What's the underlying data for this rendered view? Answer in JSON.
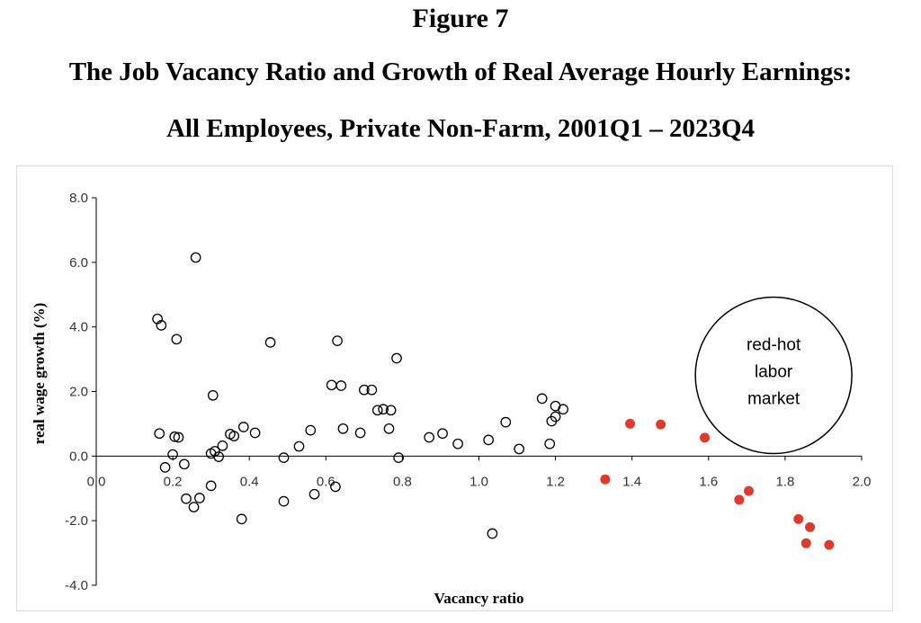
{
  "figure_label": "Figure 7",
  "title_line1": "The Job Vacancy Ratio and Growth of Real Average Hourly Earnings:",
  "title_line2": "All Employees, Private Non-Farm, 2001Q1 – 2023Q4",
  "colors": {
    "hollow_stroke": "#000000",
    "red_fill": "#e03a2f",
    "axis": "#000000"
  },
  "chart_data": {
    "type": "scatter",
    "xlabel": "Vacancy ratio",
    "ylabel": "real wage growth (%)",
    "xlim": [
      0.0,
      2.0
    ],
    "ylim": [
      -4.0,
      8.0
    ],
    "x_ticks": [
      "0.0",
      "0.2",
      "0.4",
      "0.6",
      "0.8",
      "1.0",
      "1.2",
      "1.4",
      "1.6",
      "1.8",
      "2.0"
    ],
    "y_ticks": [
      "8.0",
      "6.0",
      "4.0",
      "2.0",
      "0.0",
      "-2.0",
      "-4.0"
    ],
    "annotation": {
      "lines": [
        "red-hot",
        "labor",
        "market"
      ],
      "x": 1.77,
      "y": 2.5
    },
    "series": [
      {
        "style": "hollow",
        "points": [
          [
            0.16,
            4.25
          ],
          [
            0.17,
            4.05
          ],
          [
            0.21,
            3.62
          ],
          [
            0.26,
            6.15
          ],
          [
            0.165,
            0.7
          ],
          [
            0.18,
            -0.35
          ],
          [
            0.2,
            0.05
          ],
          [
            0.205,
            0.6
          ],
          [
            0.215,
            0.58
          ],
          [
            0.23,
            -0.25
          ],
          [
            0.235,
            -1.32
          ],
          [
            0.255,
            -1.58
          ],
          [
            0.27,
            -1.3
          ],
          [
            0.3,
            -0.92
          ],
          [
            0.305,
            1.88
          ],
          [
            0.3,
            0.08
          ],
          [
            0.31,
            0.15
          ],
          [
            0.32,
            -0.02
          ],
          [
            0.33,
            0.32
          ],
          [
            0.35,
            0.68
          ],
          [
            0.36,
            0.62
          ],
          [
            0.38,
            -1.95
          ],
          [
            0.385,
            0.9
          ],
          [
            0.415,
            0.72
          ],
          [
            0.455,
            3.52
          ],
          [
            0.49,
            -1.4
          ],
          [
            0.49,
            -0.05
          ],
          [
            0.53,
            0.3
          ],
          [
            0.56,
            0.8
          ],
          [
            0.57,
            -1.18
          ],
          [
            0.615,
            2.2
          ],
          [
            0.625,
            -0.95
          ],
          [
            0.63,
            3.57
          ],
          [
            0.64,
            2.18
          ],
          [
            0.645,
            0.85
          ],
          [
            0.69,
            0.72
          ],
          [
            0.7,
            2.05
          ],
          [
            0.72,
            2.05
          ],
          [
            0.735,
            1.42
          ],
          [
            0.75,
            1.45
          ],
          [
            0.765,
            0.85
          ],
          [
            0.77,
            1.42
          ],
          [
            0.785,
            3.03
          ],
          [
            0.79,
            -0.05
          ],
          [
            0.87,
            0.58
          ],
          [
            0.905,
            0.7
          ],
          [
            0.945,
            0.38
          ],
          [
            1.025,
            0.5
          ],
          [
            1.035,
            -2.4
          ],
          [
            1.07,
            1.05
          ],
          [
            1.105,
            0.22
          ],
          [
            1.165,
            1.78
          ],
          [
            1.185,
            0.38
          ],
          [
            1.19,
            1.08
          ],
          [
            1.2,
            1.22
          ],
          [
            1.2,
            1.55
          ],
          [
            1.22,
            1.45
          ]
        ]
      },
      {
        "style": "red",
        "points": [
          [
            1.33,
            -0.72
          ],
          [
            1.395,
            1.0
          ],
          [
            1.475,
            0.98
          ],
          [
            1.59,
            0.57
          ],
          [
            1.68,
            -1.35
          ],
          [
            1.705,
            -1.08
          ],
          [
            1.835,
            -1.95
          ],
          [
            1.865,
            -2.2
          ],
          [
            1.855,
            -2.7
          ],
          [
            1.915,
            -2.75
          ]
        ]
      }
    ]
  }
}
